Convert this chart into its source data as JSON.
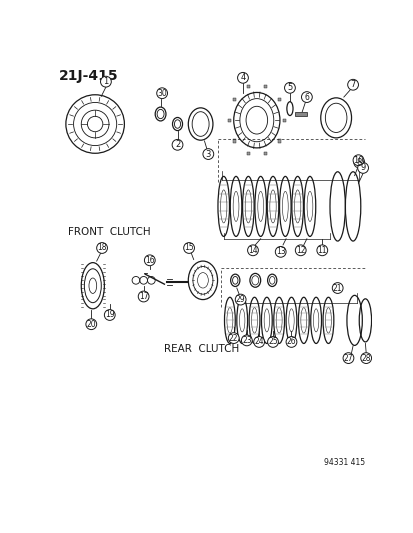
{
  "title": "21J-415",
  "footer": "94331 415",
  "bg_color": "#ffffff",
  "line_color": "#1a1a1a",
  "label_front_clutch": "FRONT  CLUTCH",
  "label_rear_clutch": "REAR  CLUTCH",
  "figsize": [
    4.14,
    5.33
  ],
  "dpi": 100
}
